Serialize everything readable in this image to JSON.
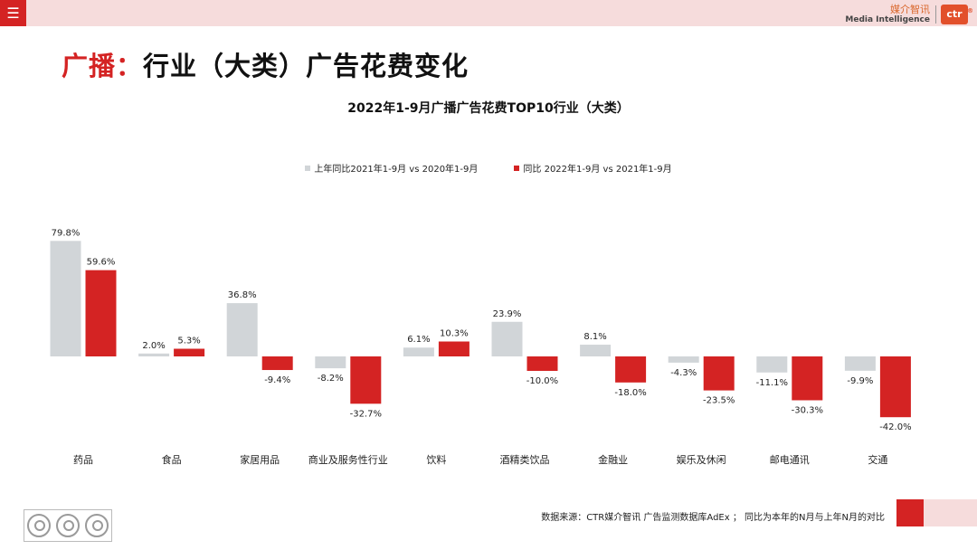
{
  "header": {
    "menu_icon": "menu-icon",
    "brand_cn": "媒介智讯",
    "brand_en": "Media Intelligence",
    "brand_logo": "ctr",
    "brand_mark": "®"
  },
  "page_title": {
    "lead": "广播：",
    "rest": "行业（大类）广告花费变化"
  },
  "colors": {
    "accent": "#d42323",
    "series_prev": "#d1d5d8",
    "series_curr": "#d42323",
    "topbar": "#f6dcdc"
  },
  "footer": {
    "source": "数据来源：CTR媒介智讯 广告监测数据库AdEx ； 同比为本年的N月与上年N月的对比",
    "cert_icons": [
      "certification-seal-icon",
      "certification-seal-icon",
      "certification-seal-icon"
    ]
  },
  "chart_data": {
    "type": "bar",
    "title": "2022年1-9月广播广告花费TOP10行业（大类）",
    "categories": [
      "药品",
      "食品",
      "家居用品",
      "商业及服务性行业",
      "饮料",
      "酒精类饮品",
      "金融业",
      "娱乐及休闲",
      "邮电通讯",
      "交通"
    ],
    "series": [
      {
        "name": "上年同比2021年1-9月  vs  2020年1-9月",
        "color": "#d1d5d8",
        "values": [
          79.8,
          2.0,
          36.8,
          -8.2,
          6.1,
          23.9,
          8.1,
          -4.3,
          -11.1,
          -9.9
        ],
        "labels": [
          "79.8%",
          "2.0%",
          "36.8%",
          "-8.2%",
          "6.1%",
          "23.9%",
          "8.1%",
          "-4.3%",
          "-11.1%",
          "-9.9%"
        ]
      },
      {
        "name": "同比 2022年1-9月  vs  2021年1-9月",
        "color": "#d42323",
        "values": [
          59.6,
          5.3,
          -9.4,
          -32.7,
          10.3,
          -10.0,
          -18.0,
          -23.5,
          -30.3,
          -42.0
        ],
        "labels": [
          "59.6%",
          "5.3%",
          "-9.4%",
          "-32.7%",
          "10.3%",
          "-10.0%",
          "-18.0%",
          "-23.5%",
          "-30.3%",
          "-42.0%"
        ]
      }
    ],
    "unit": "%",
    "ylim": [
      -45,
      82
    ],
    "grid": false,
    "legend_position": "top-center"
  }
}
